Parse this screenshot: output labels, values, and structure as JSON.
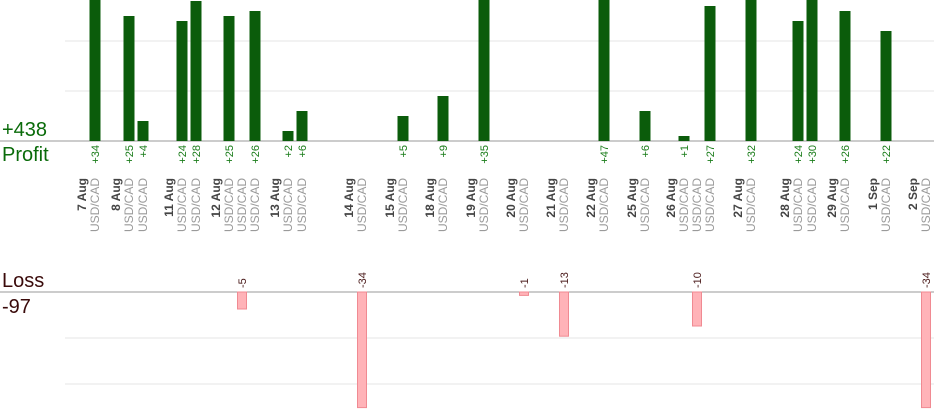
{
  "summary": {
    "profit_value": "+438",
    "profit_label": "Profit",
    "loss_label": "Loss",
    "loss_value": "-97"
  },
  "colors": {
    "profit_bar": "#0b5c0b",
    "profit_text": "#1b7d1b",
    "loss_bar": "#ffb3b8",
    "loss_bar_edge": "#f08a92",
    "grid": "#e6e6e6",
    "axis": "#9a9a9a"
  },
  "chart_data": {
    "type": "bar",
    "profit_axis_scale": [
      0,
      50
    ],
    "loss_axis_scale": [
      0,
      -40
    ],
    "grid": true,
    "groups": [
      {
        "date": "7 Aug",
        "trades": [
          {
            "pair": "USD/CAD",
            "value": 34
          }
        ]
      },
      {
        "date": "8 Aug",
        "trades": [
          {
            "pair": "USD/CAD",
            "value": 25
          },
          {
            "pair": "USD/CAD",
            "value": 4
          }
        ]
      },
      {
        "date": "11 Aug",
        "trades": [
          {
            "pair": "USD/CAD",
            "value": 24
          },
          {
            "pair": "USD/CAD",
            "value": 28
          }
        ]
      },
      {
        "date": "12 Aug",
        "trades": [
          {
            "pair": "USD/CAD",
            "value": 25
          },
          {
            "pair": "USD/CAD",
            "value": -5
          },
          {
            "pair": "USD/CAD",
            "value": 26
          }
        ]
      },
      {
        "date": "13 Aug",
        "trades": [
          {
            "pair": "USD/CAD",
            "value": 2
          },
          {
            "pair": "USD/CAD",
            "value": 6
          }
        ]
      },
      {
        "date": "14 Aug",
        "trades": [
          {
            "pair": "USD/CAD",
            "value": -34
          }
        ]
      },
      {
        "date": "15 Aug",
        "trades": [
          {
            "pair": "USD/CAD",
            "value": 5
          }
        ]
      },
      {
        "date": "18 Aug",
        "trades": [
          {
            "pair": "USD/CAD",
            "value": 9
          }
        ]
      },
      {
        "date": "19 Aug",
        "trades": [
          {
            "pair": "USD/CAD",
            "value": 35
          }
        ]
      },
      {
        "date": "20 Aug",
        "trades": [
          {
            "pair": "USD/CAD",
            "value": -1
          }
        ]
      },
      {
        "date": "21 Aug",
        "trades": [
          {
            "pair": "USD/CAD",
            "value": -13
          }
        ]
      },
      {
        "date": "22 Aug",
        "trades": [
          {
            "pair": "USD/CAD",
            "value": 47
          }
        ]
      },
      {
        "date": "25 Aug",
        "trades": [
          {
            "pair": "USD/CAD",
            "value": 6
          }
        ]
      },
      {
        "date": "26 Aug",
        "trades": [
          {
            "pair": "USD/CAD",
            "value": 1
          },
          {
            "pair": "USD/CAD",
            "value": -10
          },
          {
            "pair": "USD/CAD",
            "value": 27
          }
        ]
      },
      {
        "date": "27 Aug",
        "trades": [
          {
            "pair": "USD/CAD",
            "value": 32
          }
        ]
      },
      {
        "date": "28 Aug",
        "trades": [
          {
            "pair": "USD/CAD",
            "value": 24
          },
          {
            "pair": "USD/CAD",
            "value": 30
          }
        ]
      },
      {
        "date": "29 Aug",
        "trades": [
          {
            "pair": "USD/CAD",
            "value": 26
          }
        ]
      },
      {
        "date": "1 Sep",
        "trades": [
          {
            "pair": "USD/CAD",
            "value": 22
          }
        ]
      },
      {
        "date": "2 Sep",
        "trades": [
          {
            "pair": "USD/CAD",
            "value": -34
          }
        ]
      }
    ]
  }
}
